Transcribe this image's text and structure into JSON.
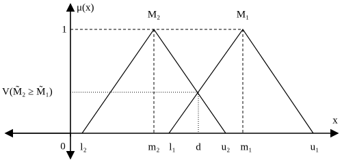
{
  "axes": {
    "y_label": "μ(x)",
    "x_label": "x",
    "origin": "0",
    "one": "1"
  },
  "peaks": [
    "M₂",
    "M₁"
  ],
  "level_label": "V(M̃₂ ≥ M̃₁)",
  "x_labels": [
    "l₂",
    "m₂",
    "l₁",
    "d",
    "u₂",
    "m₁",
    "u₁"
  ]
}
